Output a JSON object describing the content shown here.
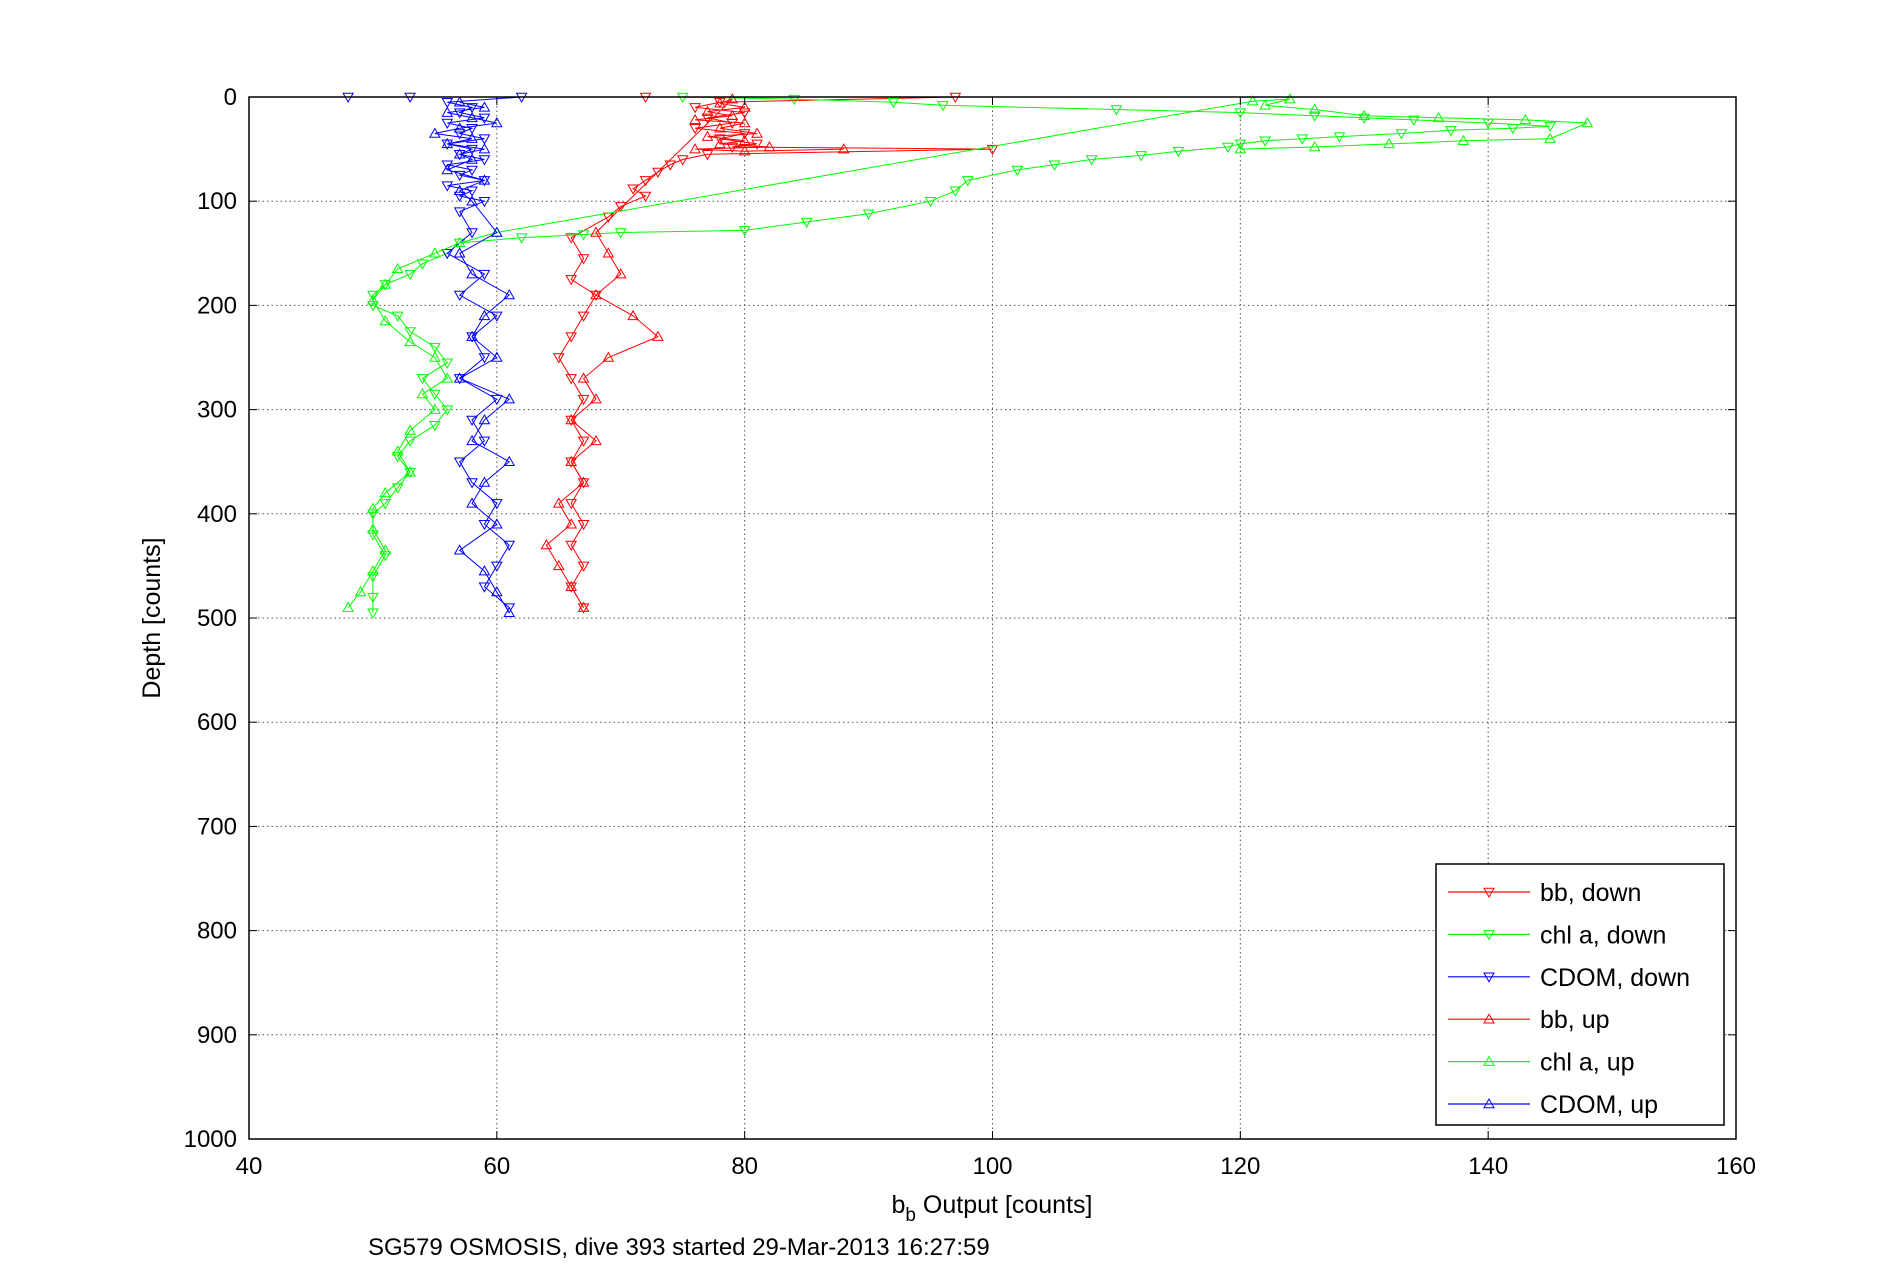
{
  "chart_data": {
    "type": "scatter",
    "caption": "SG579 OSMOSIS, dive 393 started 29-Mar-2013 16:27:59",
    "xlabel_main": "b",
    "xlabel_sub": "b",
    "xlabel_rest": " Output [counts]",
    "ylabel": "Depth [counts]",
    "xlim": [
      40,
      160
    ],
    "ylim": [
      0,
      1000
    ],
    "y_reversed": true,
    "grid": true,
    "legend_placement": "bottom-right",
    "x_ticks": [
      40,
      60,
      80,
      100,
      120,
      140,
      160
    ],
    "y_ticks": [
      0,
      100,
      200,
      300,
      400,
      500,
      600,
      700,
      800,
      900,
      1000
    ],
    "series": [
      {
        "name": "bb, down",
        "color": "#ff0000",
        "marker": "triangle-down",
        "points": [
          [
            72,
            0
          ],
          [
            97,
            0
          ],
          [
            78,
            5
          ],
          [
            76,
            10
          ],
          [
            80,
            15
          ],
          [
            77,
            20
          ],
          [
            79,
            25
          ],
          [
            76,
            30
          ],
          [
            80,
            35
          ],
          [
            78,
            40
          ],
          [
            81,
            45
          ],
          [
            79,
            48
          ],
          [
            100,
            50
          ],
          [
            77,
            55
          ],
          [
            75,
            60
          ],
          [
            74,
            65
          ],
          [
            73,
            72
          ],
          [
            72,
            80
          ],
          [
            71,
            88
          ],
          [
            72,
            95
          ],
          [
            70,
            105
          ],
          [
            69,
            115
          ],
          [
            66,
            135
          ],
          [
            67,
            155
          ],
          [
            66,
            175
          ],
          [
            68,
            190
          ],
          [
            67,
            210
          ],
          [
            66,
            230
          ],
          [
            65,
            250
          ],
          [
            66,
            270
          ],
          [
            67,
            290
          ],
          [
            66,
            310
          ],
          [
            67,
            330
          ],
          [
            66,
            350
          ],
          [
            67,
            370
          ],
          [
            66,
            390
          ],
          [
            67,
            410
          ],
          [
            66,
            430
          ],
          [
            67,
            450
          ],
          [
            66,
            470
          ],
          [
            67,
            490
          ]
        ]
      },
      {
        "name": "chl a, down",
        "color": "#00ff00",
        "marker": "triangle-down",
        "points": [
          [
            75,
            0
          ],
          [
            84,
            2
          ],
          [
            92,
            5
          ],
          [
            96,
            8
          ],
          [
            110,
            12
          ],
          [
            120,
            15
          ],
          [
            126,
            18
          ],
          [
            130,
            20
          ],
          [
            134,
            22
          ],
          [
            140,
            25
          ],
          [
            145,
            28
          ],
          [
            142,
            30
          ],
          [
            137,
            32
          ],
          [
            133,
            35
          ],
          [
            128,
            38
          ],
          [
            125,
            40
          ],
          [
            122,
            42
          ],
          [
            120,
            45
          ],
          [
            119,
            48
          ],
          [
            115,
            52
          ],
          [
            112,
            56
          ],
          [
            108,
            60
          ],
          [
            105,
            65
          ],
          [
            102,
            70
          ],
          [
            98,
            80
          ],
          [
            97,
            90
          ],
          [
            95,
            100
          ],
          [
            90,
            112
          ],
          [
            85,
            120
          ],
          [
            80,
            128
          ],
          [
            70,
            130
          ],
          [
            67,
            132
          ],
          [
            62,
            135
          ],
          [
            57,
            140
          ],
          [
            56,
            150
          ],
          [
            54,
            160
          ],
          [
            53,
            170
          ],
          [
            51,
            180
          ],
          [
            50,
            190
          ],
          [
            50,
            200
          ],
          [
            52,
            210
          ],
          [
            53,
            225
          ],
          [
            55,
            240
          ],
          [
            56,
            255
          ],
          [
            54,
            270
          ],
          [
            55,
            285
          ],
          [
            56,
            300
          ],
          [
            55,
            315
          ],
          [
            53,
            330
          ],
          [
            52,
            345
          ],
          [
            53,
            360
          ],
          [
            52,
            375
          ],
          [
            51,
            390
          ],
          [
            50,
            400
          ],
          [
            50,
            420
          ],
          [
            51,
            440
          ],
          [
            50,
            460
          ],
          [
            50,
            480
          ],
          [
            50,
            495
          ]
        ]
      },
      {
        "name": "CDOM, down",
        "color": "#0000ff",
        "marker": "triangle-down",
        "points": [
          [
            48,
            0
          ],
          [
            53,
            0
          ],
          [
            62,
            0
          ],
          [
            56,
            5
          ],
          [
            58,
            10
          ],
          [
            57,
            15
          ],
          [
            59,
            20
          ],
          [
            56,
            25
          ],
          [
            58,
            30
          ],
          [
            57,
            35
          ],
          [
            59,
            40
          ],
          [
            56,
            45
          ],
          [
            58,
            50
          ],
          [
            57,
            55
          ],
          [
            59,
            60
          ],
          [
            56,
            65
          ],
          [
            58,
            70
          ],
          [
            57,
            75
          ],
          [
            59,
            80
          ],
          [
            56,
            85
          ],
          [
            58,
            90
          ],
          [
            57,
            95
          ],
          [
            59,
            100
          ],
          [
            57,
            110
          ],
          [
            58,
            130
          ],
          [
            56,
            150
          ],
          [
            59,
            170
          ],
          [
            57,
            190
          ],
          [
            60,
            210
          ],
          [
            58,
            230
          ],
          [
            59,
            250
          ],
          [
            57,
            270
          ],
          [
            60,
            290
          ],
          [
            58,
            310
          ],
          [
            59,
            330
          ],
          [
            57,
            350
          ],
          [
            58,
            370
          ],
          [
            60,
            390
          ],
          [
            59,
            410
          ],
          [
            61,
            430
          ],
          [
            60,
            450
          ],
          [
            59,
            470
          ],
          [
            61,
            490
          ]
        ]
      },
      {
        "name": "bb, up",
        "color": "#ff0000",
        "marker": "triangle-up",
        "points": [
          [
            88,
            50
          ],
          [
            80,
            52
          ],
          [
            76,
            50
          ],
          [
            82,
            48
          ],
          [
            78,
            45
          ],
          [
            80,
            42
          ],
          [
            77,
            38
          ],
          [
            81,
            35
          ],
          [
            78,
            30
          ],
          [
            80,
            25
          ],
          [
            76,
            22
          ],
          [
            79,
            18
          ],
          [
            77,
            14
          ],
          [
            80,
            10
          ],
          [
            78,
            6
          ],
          [
            79,
            2
          ],
          [
            68,
            130
          ],
          [
            69,
            150
          ],
          [
            70,
            170
          ],
          [
            68,
            190
          ],
          [
            71,
            210
          ],
          [
            73,
            230
          ],
          [
            69,
            250
          ],
          [
            67,
            270
          ],
          [
            68,
            290
          ],
          [
            66,
            310
          ],
          [
            68,
            330
          ],
          [
            66,
            350
          ],
          [
            67,
            370
          ],
          [
            65,
            390
          ],
          [
            66,
            410
          ],
          [
            64,
            430
          ],
          [
            65,
            450
          ],
          [
            66,
            470
          ],
          [
            67,
            490
          ]
        ]
      },
      {
        "name": "chl a, up",
        "color": "#00ff00",
        "marker": "triangle-up",
        "points": [
          [
            120,
            50
          ],
          [
            126,
            48
          ],
          [
            132,
            45
          ],
          [
            138,
            42
          ],
          [
            145,
            40
          ],
          [
            148,
            25
          ],
          [
            143,
            22
          ],
          [
            136,
            20
          ],
          [
            130,
            18
          ],
          [
            126,
            12
          ],
          [
            122,
            8
          ],
          [
            124,
            2
          ],
          [
            121,
            4
          ],
          [
            60,
            130
          ],
          [
            57,
            140
          ],
          [
            55,
            150
          ],
          [
            52,
            165
          ],
          [
            51,
            180
          ],
          [
            50,
            195
          ],
          [
            51,
            215
          ],
          [
            53,
            235
          ],
          [
            55,
            250
          ],
          [
            56,
            270
          ],
          [
            54,
            285
          ],
          [
            55,
            300
          ],
          [
            53,
            320
          ],
          [
            52,
            340
          ],
          [
            53,
            360
          ],
          [
            51,
            380
          ],
          [
            50,
            395
          ],
          [
            50,
            415
          ],
          [
            51,
            435
          ],
          [
            50,
            455
          ],
          [
            49,
            475
          ],
          [
            48,
            490
          ]
        ]
      },
      {
        "name": "CDOM, up",
        "color": "#0000ff",
        "marker": "triangle-up",
        "points": [
          [
            57,
            5
          ],
          [
            59,
            10
          ],
          [
            56,
            15
          ],
          [
            58,
            20
          ],
          [
            60,
            25
          ],
          [
            57,
            30
          ],
          [
            55,
            35
          ],
          [
            58,
            40
          ],
          [
            56,
            45
          ],
          [
            59,
            50
          ],
          [
            57,
            55
          ],
          [
            58,
            60
          ],
          [
            56,
            70
          ],
          [
            59,
            80
          ],
          [
            57,
            90
          ],
          [
            58,
            100
          ],
          [
            60,
            130
          ],
          [
            57,
            150
          ],
          [
            58,
            170
          ],
          [
            61,
            190
          ],
          [
            59,
            210
          ],
          [
            58,
            230
          ],
          [
            60,
            250
          ],
          [
            57,
            270
          ],
          [
            61,
            290
          ],
          [
            59,
            310
          ],
          [
            58,
            330
          ],
          [
            61,
            350
          ],
          [
            59,
            370
          ],
          [
            58,
            390
          ],
          [
            60,
            410
          ],
          [
            57,
            435
          ],
          [
            59,
            455
          ],
          [
            60,
            475
          ],
          [
            61,
            495
          ]
        ]
      }
    ]
  }
}
